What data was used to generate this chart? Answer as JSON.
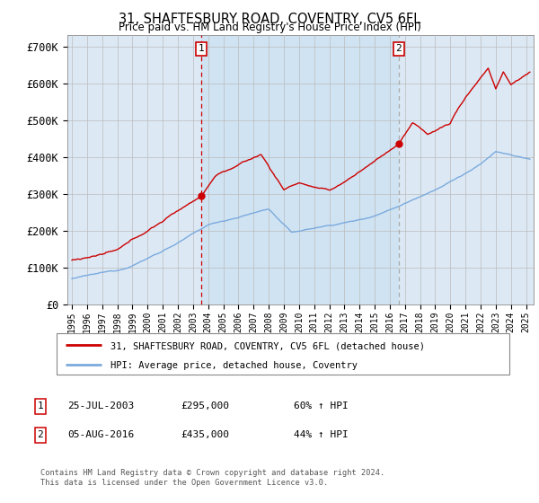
{
  "title": "31, SHAFTESBURY ROAD, COVENTRY, CV5 6FL",
  "subtitle": "Price paid vs. HM Land Registry's House Price Index (HPI)",
  "ylabel_ticks": [
    "£0",
    "£100K",
    "£200K",
    "£300K",
    "£400K",
    "£500K",
    "£600K",
    "£700K"
  ],
  "ytick_vals": [
    0,
    100000,
    200000,
    300000,
    400000,
    500000,
    600000,
    700000
  ],
  "ylim": [
    0,
    730000
  ],
  "xlim_start": 1994.7,
  "xlim_end": 2025.5,
  "sale1_date": 2003.56,
  "sale1_price": 295000,
  "sale1_label": "1",
  "sale1_text": "25-JUL-2003",
  "sale1_price_text": "£295,000",
  "sale1_hpi_text": "60% ↑ HPI",
  "sale2_date": 2016.59,
  "sale2_price": 435000,
  "sale2_label": "2",
  "sale2_text": "05-AUG-2016",
  "sale2_price_text": "£435,000",
  "sale2_hpi_text": "44% ↑ HPI",
  "legend_line1": "31, SHAFTESBURY ROAD, COVENTRY, CV5 6FL (detached house)",
  "legend_line2": "HPI: Average price, detached house, Coventry",
  "footnote1": "Contains HM Land Registry data © Crown copyright and database right 2024.",
  "footnote2": "This data is licensed under the Open Government Licence v3.0.",
  "red_color": "#cc0000",
  "blue_color": "#7aaadd",
  "bg_color": "#dce9f5",
  "bg_highlight": "#c8dff0",
  "grid_color": "#bbbbbb",
  "box_color": "#cc0000",
  "vline2_color": "#aaaaaa"
}
